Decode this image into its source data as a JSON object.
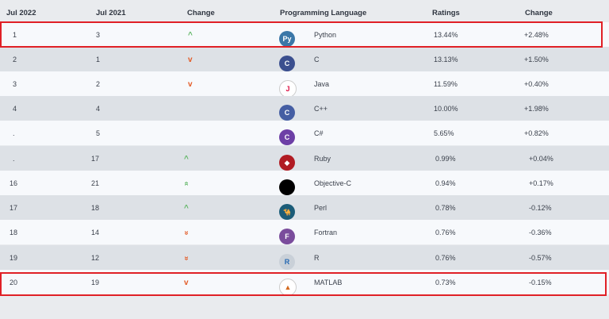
{
  "header": {
    "jul2022": "Jul 2022",
    "jul2021": "Jul 2021",
    "change": "Change",
    "language": "Programming Language",
    "ratings": "Ratings",
    "change2": "Change"
  },
  "rows": [
    {
      "rank2022": "1",
      "rank2021": "3",
      "trend": "up",
      "trend_glyph": "^",
      "icon": "python-icon",
      "language": "Python",
      "rating": "13.44%",
      "change": "+2.48%"
    },
    {
      "rank2022": "2",
      "rank2021": "1",
      "trend": "down",
      "trend_glyph": "v",
      "icon": "c-icon",
      "language": "C",
      "rating": "13.13%",
      "change": "+1.50%"
    },
    {
      "rank2022": "3",
      "rank2021": "2",
      "trend": "down",
      "trend_glyph": "v",
      "icon": "java-icon",
      "language": "Java",
      "rating": "11.59%",
      "change": "+0.40%"
    },
    {
      "rank2022": "4",
      "rank2021": "4",
      "trend": "",
      "trend_glyph": "",
      "icon": "cpp-icon",
      "language": "C++",
      "rating": "10.00%",
      "change": "+1.98%"
    },
    {
      "rank2022": ".",
      "rank2021": "5",
      "trend": "",
      "trend_glyph": "",
      "icon": "csharp-icon",
      "language": "C#",
      "rating": "5.65%",
      "change": "+0.82%"
    },
    {
      "rank2022": ".",
      "rank2021": "17",
      "trend": "up",
      "trend_glyph": "^",
      "icon": "ruby-icon",
      "language": "Ruby",
      "rating": "0.99%",
      "change": "+0.04%"
    },
    {
      "rank2022": "16",
      "rank2021": "21",
      "trend": "up",
      "trend_glyph": "»",
      "icon": "objective-c-icon",
      "language": "Objective-C",
      "rating": "0.94%",
      "change": "+0.17%"
    },
    {
      "rank2022": "17",
      "rank2021": "18",
      "trend": "up",
      "trend_glyph": "^",
      "icon": "perl-icon",
      "language": "Perl",
      "rating": "0.78%",
      "change": "-0.12%"
    },
    {
      "rank2022": "18",
      "rank2021": "14",
      "trend": "down",
      "trend_glyph": "»",
      "icon": "fortran-icon",
      "language": "Fortran",
      "rating": "0.76%",
      "change": "-0.36%"
    },
    {
      "rank2022": "19",
      "rank2021": "12",
      "trend": "down",
      "trend_glyph": "»",
      "icon": "r-icon",
      "language": "R",
      "rating": "0.76%",
      "change": "-0.57%"
    },
    {
      "rank2022": "20",
      "rank2021": "19",
      "trend": "down",
      "trend_glyph": "v",
      "icon": "matlab-icon",
      "language": "MATLAB",
      "rating": "0.73%",
      "change": "-0.15%"
    }
  ],
  "icon_labels": {
    "python": "Py",
    "c": "C",
    "java": "J",
    "cpp": "C",
    "csharp": "C",
    "ruby": "◆",
    "objective_c": "",
    "perl": "🐪",
    "fortran": "F",
    "r": "R",
    "matlab": "▲"
  },
  "colors": {
    "highlight": "#e02026",
    "up": "#62b767",
    "down": "#e35b26"
  }
}
